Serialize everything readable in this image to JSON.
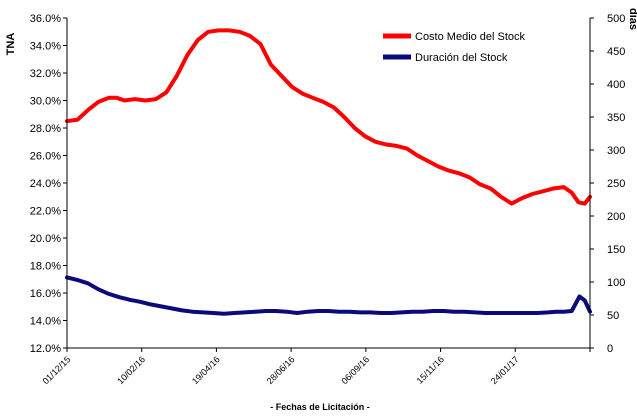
{
  "chart_data": {
    "type": "line",
    "xlabel": "- Fechas de Licitación -",
    "y1label": "TNA",
    "y2label": "días",
    "y1ticks": [
      "12.0%",
      "14.0%",
      "16.0%",
      "18.0%",
      "20.0%",
      "22.0%",
      "24.0%",
      "26.0%",
      "28.0%",
      "30.0%",
      "32.0%",
      "34.0%",
      "36.0%"
    ],
    "y1lim": [
      12.0,
      36.0
    ],
    "y2ticks": [
      "0",
      "50",
      "100",
      "150",
      "200",
      "250",
      "300",
      "350",
      "400",
      "450",
      "500"
    ],
    "y2lim": [
      0,
      500
    ],
    "xticks": [
      "01/12/15",
      "10/02/16",
      "19/04/16",
      "28/06/16",
      "06/09/16",
      "15/11/16",
      "24/01/17"
    ],
    "xlim": [
      0,
      1
    ],
    "legend_position": "top-right",
    "series": [
      {
        "name": "Costo Medio del Stock",
        "axis": "left",
        "color": "#ff0000",
        "x": [
          0.0,
          0.02,
          0.04,
          0.06,
          0.08,
          0.095,
          0.11,
          0.13,
          0.15,
          0.17,
          0.19,
          0.21,
          0.23,
          0.25,
          0.27,
          0.29,
          0.31,
          0.33,
          0.35,
          0.37,
          0.39,
          0.41,
          0.43,
          0.45,
          0.47,
          0.49,
          0.51,
          0.53,
          0.55,
          0.57,
          0.59,
          0.61,
          0.63,
          0.65,
          0.67,
          0.69,
          0.71,
          0.73,
          0.75,
          0.77,
          0.79,
          0.81,
          0.83,
          0.85,
          0.87,
          0.89,
          0.91,
          0.93,
          0.95,
          0.965,
          0.978,
          0.99,
          1.0
        ],
        "values": [
          28.5,
          28.6,
          29.3,
          29.9,
          30.2,
          30.2,
          30.0,
          30.1,
          30.0,
          30.1,
          30.6,
          31.8,
          33.3,
          34.4,
          35.0,
          35.1,
          35.1,
          35.0,
          34.7,
          34.1,
          32.6,
          31.8,
          31.0,
          30.5,
          30.2,
          29.9,
          29.5,
          28.8,
          28.0,
          27.4,
          27.0,
          26.8,
          26.7,
          26.5,
          26.0,
          25.6,
          25.2,
          24.9,
          24.7,
          24.4,
          23.9,
          23.6,
          23.0,
          22.5,
          22.9,
          23.2,
          23.4,
          23.6,
          23.7,
          23.3,
          22.6,
          22.5,
          23.0
        ]
      },
      {
        "name": "Duración del Stock",
        "axis": "right",
        "color": "#0a0a7a",
        "x": [
          0.0,
          0.02,
          0.04,
          0.06,
          0.08,
          0.1,
          0.12,
          0.14,
          0.16,
          0.18,
          0.2,
          0.22,
          0.24,
          0.26,
          0.28,
          0.3,
          0.32,
          0.34,
          0.36,
          0.38,
          0.4,
          0.42,
          0.44,
          0.46,
          0.48,
          0.5,
          0.52,
          0.54,
          0.56,
          0.58,
          0.6,
          0.62,
          0.64,
          0.66,
          0.68,
          0.7,
          0.72,
          0.74,
          0.76,
          0.78,
          0.8,
          0.82,
          0.84,
          0.86,
          0.88,
          0.9,
          0.92,
          0.935,
          0.95,
          0.965,
          0.98,
          0.99,
          1.0
        ],
        "values": [
          107,
          103,
          98,
          89,
          82,
          77,
          73,
          70,
          66,
          63,
          60,
          57,
          55,
          54,
          53,
          52,
          53,
          54,
          55,
          56,
          56,
          55,
          53,
          55,
          56,
          56,
          55,
          55,
          54,
          54,
          53,
          53,
          54,
          55,
          55,
          56,
          56,
          55,
          55,
          54,
          53,
          53,
          53,
          53,
          53,
          53,
          54,
          55,
          55,
          56,
          78,
          72,
          55
        ]
      }
    ]
  }
}
